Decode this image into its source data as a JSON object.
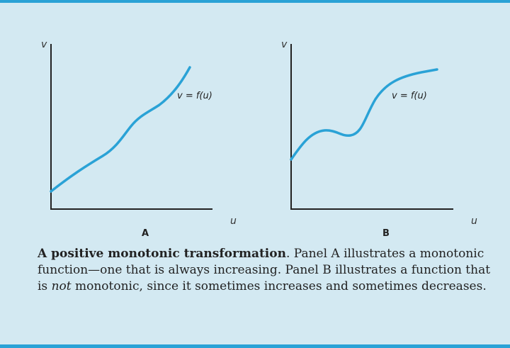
{
  "panels": [
    {
      "letter": "A",
      "x_axis": "u",
      "y_axis": "v",
      "curve_label": "v = f(u)"
    },
    {
      "letter": "B",
      "x_axis": "u",
      "y_axis": "v",
      "curve_label": "v = f(u)"
    }
  ],
  "caption": {
    "title": "A positive monotonic transformation",
    "part1": ". Panel A illustrates a monotonic function—one that is always increasing. Panel B illustrates a function that is ",
    "emphasis": "not",
    "part2": " monotonic, since it sometimes increases and sometimes decreases."
  },
  "colors": {
    "curve": "#2aa2d6",
    "border": "#2aa2d6",
    "background": "#d3e9f2"
  }
}
